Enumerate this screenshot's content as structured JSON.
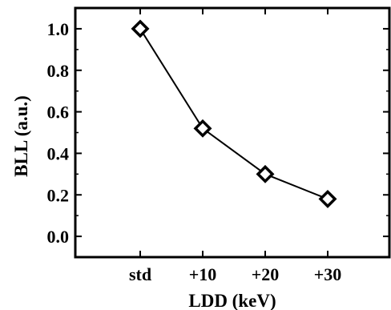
{
  "chart_data": {
    "type": "line",
    "title": "",
    "xlabel": "LDD (keV)",
    "ylabel": "BLL (a.u.)",
    "categories": [
      "std",
      "+10",
      "+20",
      "+30"
    ],
    "series": [
      {
        "values": [
          1.0,
          0.52,
          0.3,
          0.18
        ]
      }
    ],
    "ylim": [
      -0.1,
      1.1
    ],
    "yticks": [
      "0.0",
      "0.2",
      "0.4",
      "0.6",
      "0.8",
      "1.0"
    ],
    "grid": false,
    "marker": "diamond-open",
    "line_color": "#000000"
  }
}
